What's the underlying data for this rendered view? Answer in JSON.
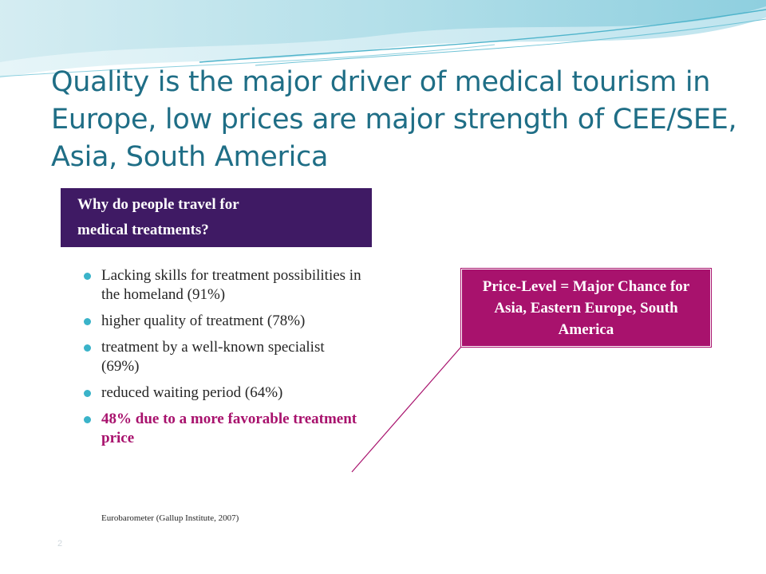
{
  "slide": {
    "title": "Quality is the major driver of medical tourism in Europe, low prices are major strength of CEE/SEE, Asia, South America",
    "question": {
      "line1": "Why do people travel for",
      "line2": "medical treatments?"
    },
    "bullets": [
      "Lacking skills for treatment possibilities in the homeland (91%)",
      "higher quality of treatment (78%)",
      "treatment by a well-known specialist (69%)",
      "reduced waiting period (64%)",
      "48% due to a more favorable treatment price"
    ],
    "source": "Eurobarometer  (Gallup Institute, 2007)",
    "callout": "Price-Level = Major Chance for Asia, Eastern Europe, South America",
    "page_number": "2"
  },
  "colors": {
    "title": "#1f6e86",
    "question_bg": "#3f1a64",
    "highlight": "#a8126d",
    "bullet_dot": "#3ab3c9"
  },
  "icons": {
    "bullet": "filled-circle",
    "header": "teal-wave-decoration"
  }
}
